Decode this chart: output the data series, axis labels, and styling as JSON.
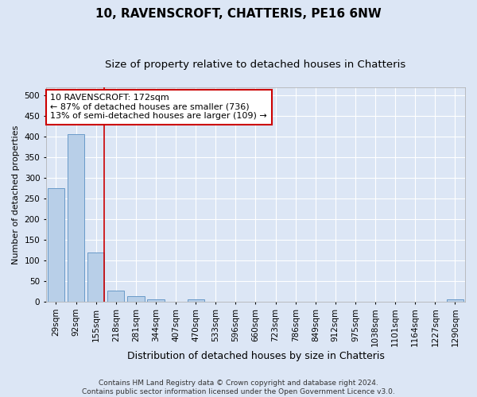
{
  "title1": "10, RAVENSCROFT, CHATTERIS, PE16 6NW",
  "title2": "Size of property relative to detached houses in Chatteris",
  "xlabel": "Distribution of detached houses by size in Chatteris",
  "ylabel": "Number of detached properties",
  "categories": [
    "29sqm",
    "92sqm",
    "155sqm",
    "218sqm",
    "281sqm",
    "344sqm",
    "407sqm",
    "470sqm",
    "533sqm",
    "596sqm",
    "660sqm",
    "723sqm",
    "786sqm",
    "849sqm",
    "912sqm",
    "975sqm",
    "1038sqm",
    "1101sqm",
    "1164sqm",
    "1227sqm",
    "1290sqm"
  ],
  "values": [
    275,
    407,
    120,
    28,
    14,
    5,
    0,
    5,
    0,
    0,
    0,
    0,
    0,
    0,
    0,
    0,
    0,
    0,
    0,
    0,
    5
  ],
  "bar_color": "#b8cfe8",
  "bar_edge_color": "#6899c8",
  "vline_x_index": 2,
  "vline_color": "#cc0000",
  "annotation_text": "10 RAVENSCROFT: 172sqm\n← 87% of detached houses are smaller (736)\n13% of semi-detached houses are larger (109) →",
  "annotation_box_color": "#ffffff",
  "annotation_box_edge": "#cc0000",
  "ylim": [
    0,
    520
  ],
  "yticks": [
    0,
    50,
    100,
    150,
    200,
    250,
    300,
    350,
    400,
    450,
    500
  ],
  "footer1": "Contains HM Land Registry data © Crown copyright and database right 2024.",
  "footer2": "Contains public sector information licensed under the Open Government Licence v3.0.",
  "bg_color": "#dce6f5",
  "plot_bg_color": "#dce6f5",
  "grid_color": "#ffffff",
  "title1_fontsize": 11,
  "title2_fontsize": 9.5,
  "xlabel_fontsize": 9,
  "ylabel_fontsize": 8,
  "tick_fontsize": 7.5,
  "annot_fontsize": 8,
  "footer_fontsize": 6.5
}
